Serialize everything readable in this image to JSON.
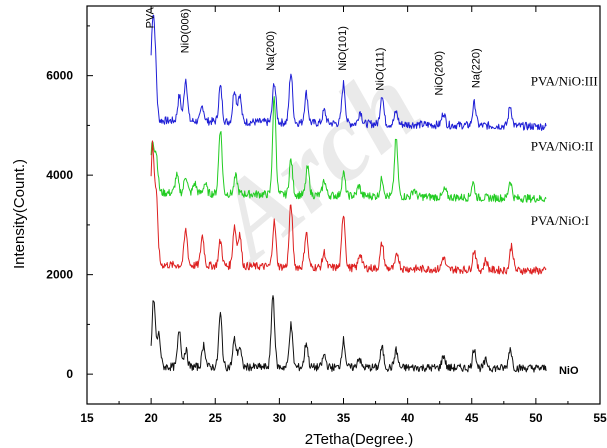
{
  "chart_data": {
    "type": "line",
    "xlabel": "2Tetha(Degree.)",
    "ylabel": "Intensity(Count.)",
    "xlim": [
      15,
      55
    ],
    "ylim": [
      -600,
      7400
    ],
    "x_ticks": [
      "15",
      "20",
      "25",
      "30",
      "35",
      "40",
      "45",
      "50",
      "55"
    ],
    "y_ticks": [
      "0",
      "2000",
      "4000",
      "6000"
    ],
    "grid": false,
    "watermark": "Arch",
    "series": [
      {
        "name": "PVA/NiO:III",
        "color": "#1f1fd6",
        "base": 5100,
        "peaks": [
          [
            20.1,
            1650
          ],
          [
            20.3,
            1200
          ],
          [
            22.2,
            500
          ],
          [
            22.7,
            850
          ],
          [
            24.0,
            300
          ],
          [
            25.4,
            700
          ],
          [
            26.5,
            650
          ],
          [
            26.9,
            550
          ],
          [
            29.6,
            800
          ],
          [
            30.9,
            1000
          ],
          [
            32.1,
            600
          ],
          [
            33.5,
            250
          ],
          [
            35.0,
            800
          ],
          [
            36.3,
            250
          ],
          [
            38.0,
            600
          ],
          [
            39.1,
            250
          ],
          [
            42.8,
            250
          ],
          [
            45.2,
            450
          ],
          [
            48.0,
            400
          ]
        ]
      },
      {
        "name": "PVA/NiO:II",
        "color": "#22cc22",
        "base": 3650,
        "peaks": [
          [
            20.1,
            1000
          ],
          [
            20.4,
            750
          ],
          [
            22.0,
            350
          ],
          [
            22.7,
            350
          ],
          [
            23.4,
            200
          ],
          [
            24.2,
            200
          ],
          [
            25.4,
            1300
          ],
          [
            26.6,
            350
          ],
          [
            29.6,
            1950
          ],
          [
            30.9,
            700
          ],
          [
            32.2,
            550
          ],
          [
            33.5,
            300
          ],
          [
            35.0,
            450
          ],
          [
            36.2,
            200
          ],
          [
            38.0,
            350
          ],
          [
            39.1,
            1150
          ],
          [
            40.5,
            150
          ],
          [
            42.9,
            150
          ],
          [
            45.1,
            300
          ],
          [
            48.0,
            350
          ]
        ]
      },
      {
        "name": "PVA/NiO:I",
        "color": "#dd1f1f",
        "base": 2200,
        "peaks": [
          [
            20.1,
            2350
          ],
          [
            20.4,
            1300
          ],
          [
            22.7,
            700
          ],
          [
            24.0,
            600
          ],
          [
            25.4,
            500
          ],
          [
            26.5,
            800
          ],
          [
            26.9,
            650
          ],
          [
            29.6,
            900
          ],
          [
            30.9,
            1250
          ],
          [
            32.1,
            700
          ],
          [
            33.5,
            300
          ],
          [
            35.0,
            1100
          ],
          [
            36.3,
            300
          ],
          [
            38.0,
            500
          ],
          [
            39.2,
            300
          ],
          [
            42.8,
            250
          ],
          [
            45.2,
            400
          ],
          [
            46.1,
            200
          ],
          [
            48.1,
            500
          ]
        ]
      },
      {
        "name": "NiO",
        "color": "#111111",
        "base": 150,
        "peaks": [
          [
            20.2,
            1350
          ],
          [
            20.6,
            650
          ],
          [
            22.2,
            750
          ],
          [
            22.7,
            350
          ],
          [
            24.1,
            450
          ],
          [
            25.4,
            1050
          ],
          [
            26.5,
            550
          ],
          [
            26.9,
            400
          ],
          [
            29.5,
            1450
          ],
          [
            30.9,
            850
          ],
          [
            32.1,
            500
          ],
          [
            33.5,
            250
          ],
          [
            35.0,
            550
          ],
          [
            36.2,
            200
          ],
          [
            38.0,
            400
          ],
          [
            39.1,
            350
          ],
          [
            42.8,
            250
          ],
          [
            45.2,
            400
          ],
          [
            46.1,
            150
          ],
          [
            48.0,
            400
          ]
        ]
      }
    ],
    "peak_labels": [
      {
        "text": "PVA",
        "x": 20.2,
        "y": 6950
      },
      {
        "text": "NiO(006)",
        "x": 22.9,
        "y": 6450
      },
      {
        "text": "Na(200)",
        "x": 29.6,
        "y": 6100
      },
      {
        "text": "NiO(101)",
        "x": 35.2,
        "y": 6100
      },
      {
        "text": "NiO(111)",
        "x": 38.1,
        "y": 5700
      },
      {
        "text": "NiO(200)",
        "x": 42.7,
        "y": 5600
      },
      {
        "text": "Na(220)",
        "x": 45.6,
        "y": 5750
      }
    ],
    "series_labels": [
      {
        "text": "PVA/NiO:III",
        "x": 49.6,
        "y": 5800
      },
      {
        "text": "PVA/NiO:II",
        "x": 49.6,
        "y": 4500
      },
      {
        "text": "PVA/NiO:I",
        "x": 49.6,
        "y": 3000
      },
      {
        "text": "NiO",
        "x": 51.8,
        "y": 0
      }
    ]
  }
}
